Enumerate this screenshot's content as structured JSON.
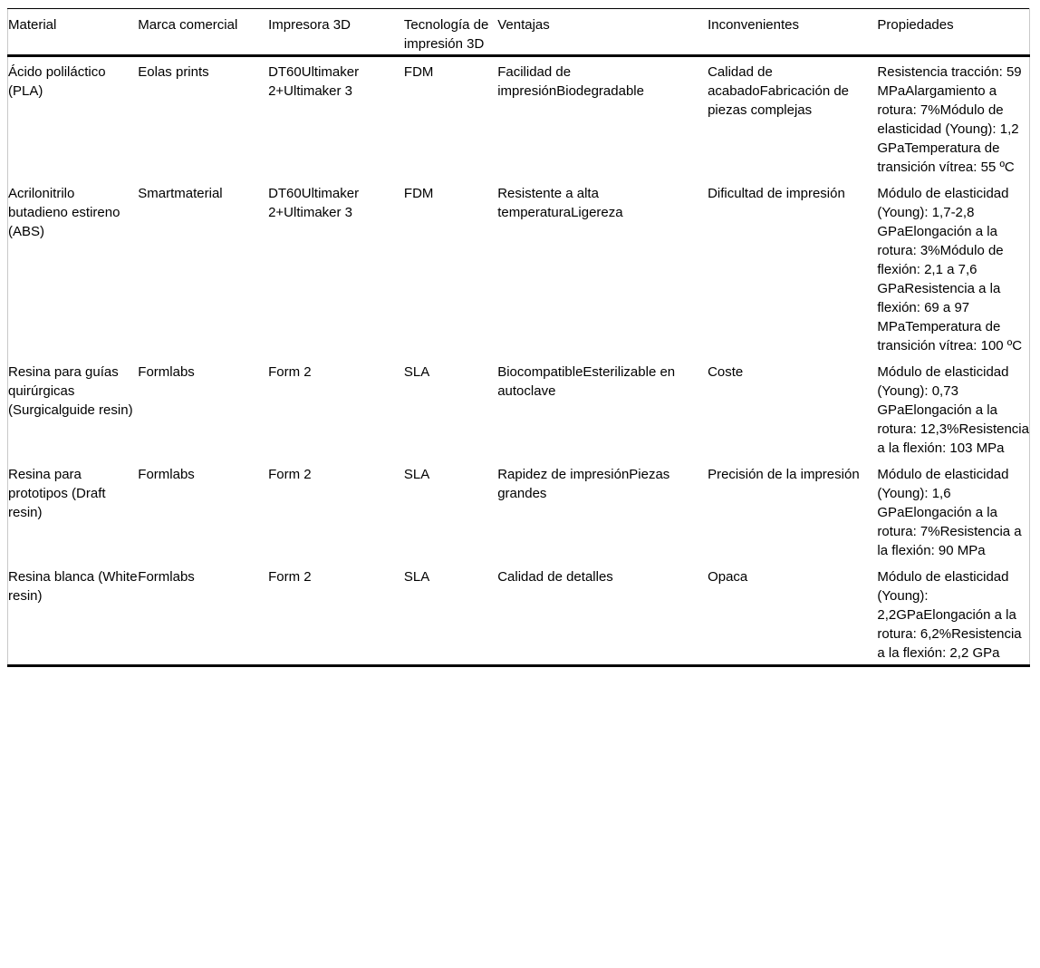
{
  "table": {
    "headers": [
      "Material",
      "Marca comercial",
      "Impresora 3D",
      "Tecnología de impresión 3D",
      "Ventajas",
      "Inconvenientes",
      "Propiedades"
    ],
    "rows": [
      [
        "Ácido poliláctico (PLA)",
        "Eolas prints",
        "DT60Ultimaker 2+Ultimaker 3",
        "FDM",
        "Facilidad de impresiónBiodegradable",
        "Calidad de acabadoFabricación de piezas complejas",
        "Resistencia tracción: 59 MPaAlargamiento a rotura: 7%Módulo de elasticidad (Young): 1,2 GPaTemperatura de transición vítrea: 55 ºC"
      ],
      [
        "Acrilonitrilo butadieno estireno (ABS)",
        "Smartmaterial",
        "DT60Ultimaker 2+Ultimaker 3",
        "FDM",
        "Resistente a alta temperaturaLigereza",
        "Dificultad de impresión",
        "Módulo de elasticidad (Young): 1,7-2,8 GPaElongación a la rotura: 3%Módulo de flexión: 2,1 a 7,6 GPaResistencia a la flexión: 69 a 97 MPaTemperatura de transición vítrea: 100 ºC"
      ],
      [
        "Resina para guías quirúrgicas (Surgicalguide resin)",
        "Formlabs",
        "Form 2",
        "SLA",
        "BiocompatibleEsterilizable en autoclave",
        "Coste",
        "Módulo de elasticidad (Young): 0,73 GPaElongación a la rotura: 12,3%Resistencia a la flexión: 103 MPa"
      ],
      [
        "Resina para prototipos (Draft resin)",
        "Formlabs",
        "Form 2",
        "SLA",
        "Rapidez de impresiónPiezas grandes",
        "Precisión de la impresión",
        "Módulo de elasticidad (Young): 1,6 GPaElongación a la rotura: 7%Resistencia a la flexión: 90 MPa"
      ],
      [
        "Resina blanca (White resin)",
        "Formlabs",
        "Form 2",
        "SLA",
        "Calidad de detalles",
        "Opaca",
        "Módulo de elasticidad (Young): 2,2GPaElongación a la rotura: 6,2%Resistencia a la flexión: 2,2 GPa"
      ]
    ],
    "rule_color": "#000000",
    "edge_rule_color": "#c9c9c9"
  }
}
